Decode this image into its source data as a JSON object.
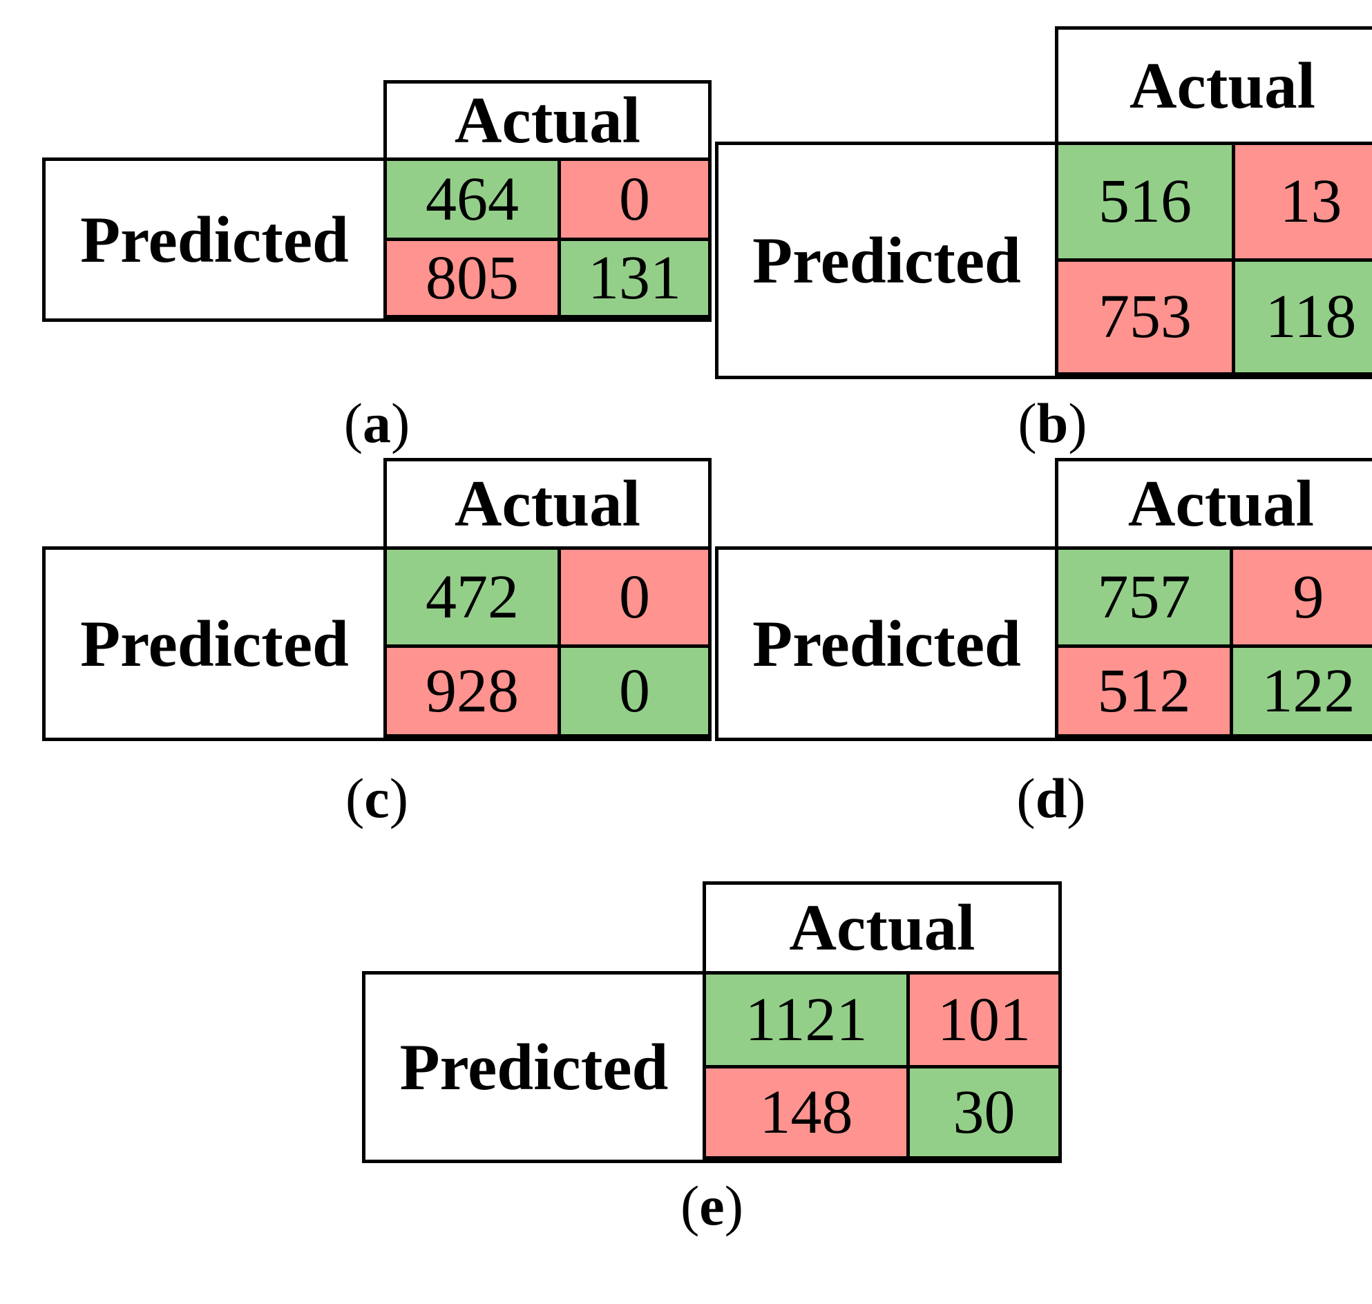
{
  "figure": {
    "type": "confusion-matrices",
    "colors": {
      "correct_green": "#94CF89",
      "incorrect_red": "#FE938F",
      "border": "#000000",
      "background": "#FFFFFF"
    }
  },
  "matrices": [
    {
      "id": "a",
      "header": "Actual",
      "row_label": "Predicted",
      "caption_open": "(",
      "caption_letter": "a",
      "caption_close": ")",
      "cells": [
        {
          "value": "464",
          "color": "green"
        },
        {
          "value": "0",
          "color": "red"
        },
        {
          "value": "805",
          "color": "red"
        },
        {
          "value": "131",
          "color": "green"
        }
      ]
    },
    {
      "id": "b",
      "header": "Actual",
      "row_label": "Predicted",
      "caption_open": "(",
      "caption_letter": "b",
      "caption_close": ")",
      "cells": [
        {
          "value": "516",
          "color": "green"
        },
        {
          "value": "13",
          "color": "red"
        },
        {
          "value": "753",
          "color": "red"
        },
        {
          "value": "118",
          "color": "green"
        }
      ]
    },
    {
      "id": "c",
      "header": "Actual",
      "row_label": "Predicted",
      "caption_open": "(",
      "caption_letter": "c",
      "caption_close": ")",
      "cells": [
        {
          "value": "472",
          "color": "green"
        },
        {
          "value": "0",
          "color": "red"
        },
        {
          "value": "928",
          "color": "red"
        },
        {
          "value": "0",
          "color": "green"
        }
      ]
    },
    {
      "id": "d",
      "header": "Actual",
      "row_label": "Predicted",
      "caption_open": "(",
      "caption_letter": "d",
      "caption_close": ")",
      "cells": [
        {
          "value": "757",
          "color": "green"
        },
        {
          "value": "9",
          "color": "red"
        },
        {
          "value": "512",
          "color": "red"
        },
        {
          "value": "122",
          "color": "green"
        }
      ]
    },
    {
      "id": "e",
      "header": "Actual",
      "row_label": "Predicted",
      "caption_open": "(",
      "caption_letter": "e",
      "caption_close": ")",
      "cells": [
        {
          "value": "1121",
          "color": "green"
        },
        {
          "value": "101",
          "color": "red"
        },
        {
          "value": "148",
          "color": "red"
        },
        {
          "value": "30",
          "color": "green"
        }
      ]
    }
  ],
  "chart_data": [
    {
      "type": "heatmap",
      "title": "(a)",
      "col_label": "Actual",
      "row_label": "Predicted",
      "matrix": [
        [
          464,
          0
        ],
        [
          805,
          131
        ]
      ],
      "cell_colors": [
        [
          "#94CF89",
          "#FE938F"
        ],
        [
          "#FE938F",
          "#94CF89"
        ]
      ]
    },
    {
      "type": "heatmap",
      "title": "(b)",
      "col_label": "Actual",
      "row_label": "Predicted",
      "matrix": [
        [
          516,
          13
        ],
        [
          753,
          118
        ]
      ],
      "cell_colors": [
        [
          "#94CF89",
          "#FE938F"
        ],
        [
          "#FE938F",
          "#94CF89"
        ]
      ]
    },
    {
      "type": "heatmap",
      "title": "(c)",
      "col_label": "Actual",
      "row_label": "Predicted",
      "matrix": [
        [
          472,
          0
        ],
        [
          928,
          0
        ]
      ],
      "cell_colors": [
        [
          "#94CF89",
          "#FE938F"
        ],
        [
          "#FE938F",
          "#94CF89"
        ]
      ]
    },
    {
      "type": "heatmap",
      "title": "(d)",
      "col_label": "Actual",
      "row_label": "Predicted",
      "matrix": [
        [
          757,
          9
        ],
        [
          512,
          122
        ]
      ],
      "cell_colors": [
        [
          "#94CF89",
          "#FE938F"
        ],
        [
          "#FE938F",
          "#94CF89"
        ]
      ]
    },
    {
      "type": "heatmap",
      "title": "(e)",
      "col_label": "Actual",
      "row_label": "Predicted",
      "matrix": [
        [
          1121,
          101
        ],
        [
          148,
          30
        ]
      ],
      "cell_colors": [
        [
          "#94CF89",
          "#FE938F"
        ],
        [
          "#FE938F",
          "#94CF89"
        ]
      ]
    }
  ]
}
